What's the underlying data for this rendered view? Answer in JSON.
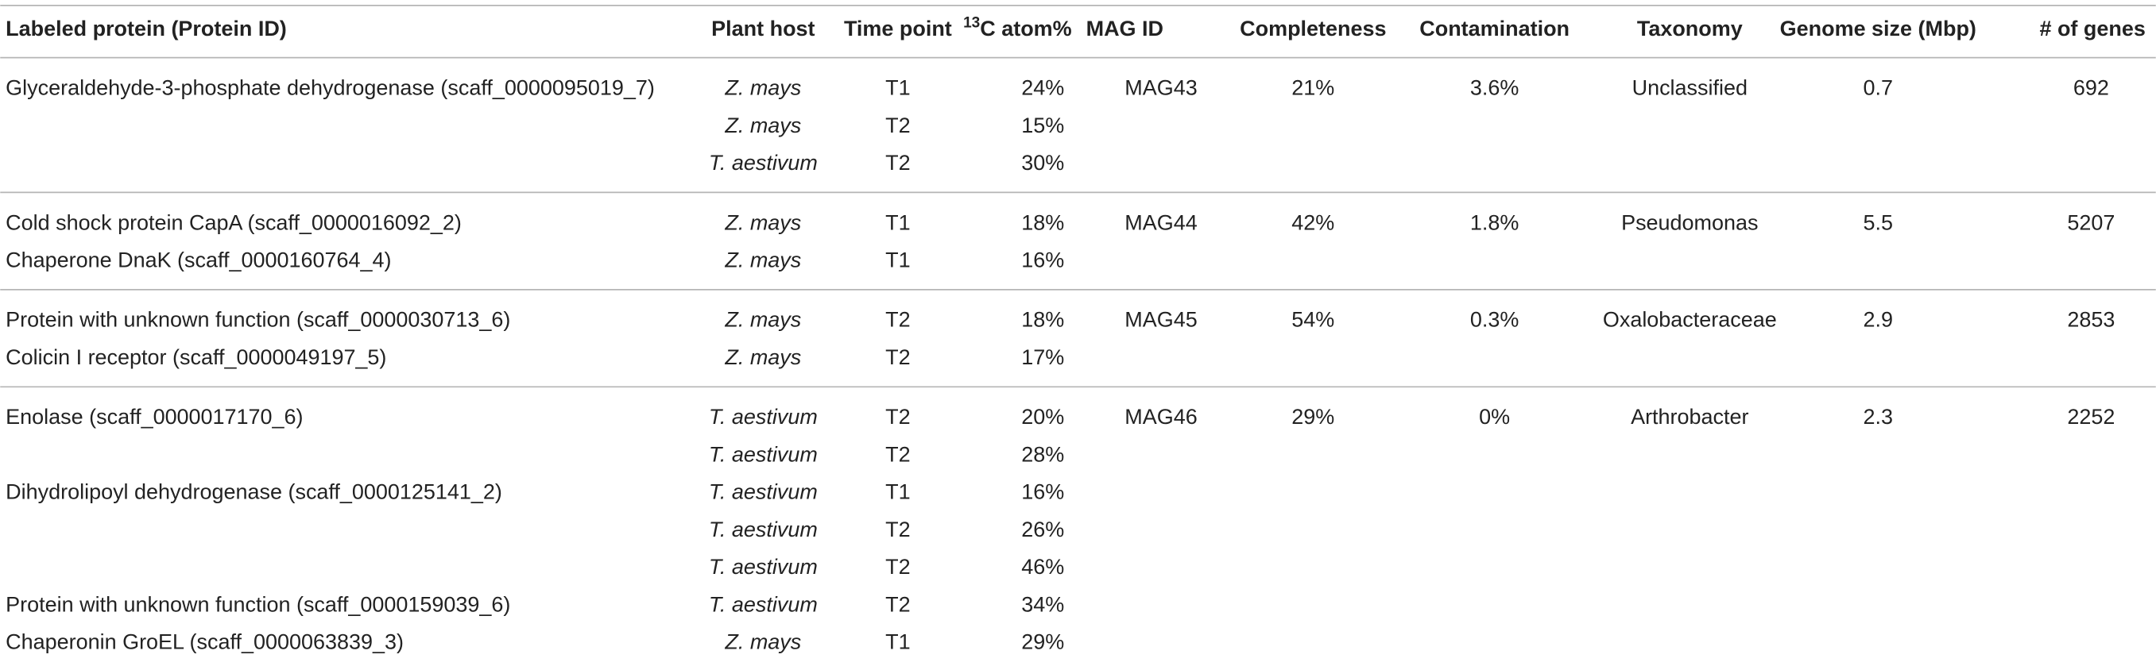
{
  "table": {
    "headers": [
      "Labeled protein (Protein ID)",
      "Plant host",
      "Time point",
      {
        "sup": "13",
        "text": "C atom%"
      },
      "MAG ID",
      "Completeness",
      "Contamination",
      "Taxonomy",
      "Genome size (Mbp)",
      "# of genes"
    ],
    "groups": [
      {
        "mag_id": "MAG43",
        "completeness": "21%",
        "contamination": "3.6%",
        "taxonomy": "Unclassified",
        "genome_size": "0.7",
        "genes": "692",
        "rows": [
          {
            "protein": "Glyceraldehyde-3-phosphate dehydrogenase (scaff_0000095019_7)",
            "host": "Z. mays",
            "time": "T1",
            "atom": "24%"
          },
          {
            "protein": null,
            "host": "Z. mays",
            "time": "T2",
            "atom": "15%"
          },
          {
            "protein": null,
            "host": "T. aestivum",
            "time": "T2",
            "atom": "30%"
          }
        ]
      },
      {
        "mag_id": "MAG44",
        "completeness": "42%",
        "contamination": "1.8%",
        "taxonomy": "Pseudomonas",
        "genome_size": "5.5",
        "genes": "5207",
        "rows": [
          {
            "protein": "Cold shock protein CapA (scaff_0000016092_2)",
            "host": "Z. mays",
            "time": "T1",
            "atom": "18%"
          },
          {
            "protein": "Chaperone DnaK (scaff_0000160764_4)",
            "host": "Z. mays",
            "time": "T1",
            "atom": "16%"
          }
        ]
      },
      {
        "mag_id": "MAG45",
        "completeness": "54%",
        "contamination": "0.3%",
        "taxonomy": "Oxalobacteraceae",
        "genome_size": "2.9",
        "genes": "2853",
        "rows": [
          {
            "protein": "Protein with unknown function (scaff_0000030713_6)",
            "host": "Z. mays",
            "time": "T2",
            "atom": "18%"
          },
          {
            "protein": "Colicin I receptor (scaff_0000049197_5)",
            "host": "Z. mays",
            "time": "T2",
            "atom": "17%"
          }
        ]
      },
      {
        "mag_id": "MAG46",
        "completeness": "29%",
        "contamination": "0%",
        "taxonomy": "Arthrobacter",
        "genome_size": "2.3",
        "genes": "2252",
        "rows": [
          {
            "protein": "Enolase (scaff_0000017170_6)",
            "host": "T. aestivum",
            "time": "T2",
            "atom": "20%"
          },
          {
            "protein": null,
            "host": "T. aestivum",
            "time": "T2",
            "atom": "28%"
          },
          {
            "protein": "Dihydrolipoyl dehydrogenase (scaff_0000125141_2)",
            "host": "T. aestivum",
            "time": "T1",
            "atom": "16%"
          },
          {
            "protein": null,
            "host": "T. aestivum",
            "time": "T2",
            "atom": "26%"
          },
          {
            "protein": null,
            "host": "T. aestivum",
            "time": "T2",
            "atom": "46%"
          },
          {
            "protein": "Protein with unknown function (scaff_0000159039_6)",
            "host": "T. aestivum",
            "time": "T2",
            "atom": "34%"
          },
          {
            "protein": "Chaperonin GroEL (scaff_0000063839_3)",
            "host": "Z. mays",
            "time": "T1",
            "atom": "29%"
          }
        ]
      }
    ]
  }
}
